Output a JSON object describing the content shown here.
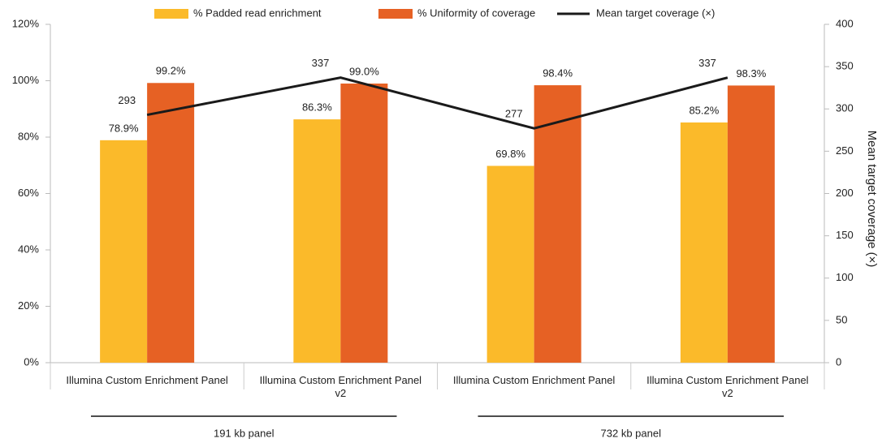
{
  "chart_data": {
    "type": "bar",
    "categories": [
      "Illumina Custom Enrichment Panel",
      "Illumina Custom Enrichment Panel v2",
      "Illumina Custom Enrichment Panel",
      "Illumina Custom Enrichment Panel v2"
    ],
    "groups": [
      "191 kb panel",
      "732 kb panel"
    ],
    "series": [
      {
        "name": "% Padded read enrichment",
        "color": "#FBBA2A",
        "values": [
          78.9,
          86.3,
          69.8,
          85.2
        ],
        "value_labels": [
          "78.9%",
          "86.3%",
          "69.8%",
          "85.2%"
        ]
      },
      {
        "name": "% Uniformity of coverage",
        "color": "#E66124",
        "values": [
          99.2,
          99.0,
          98.4,
          98.3
        ],
        "value_labels": [
          "99.2%",
          "99.0%",
          "98.4%",
          "98.3%"
        ]
      },
      {
        "name": "Mean target coverage (×)",
        "color": "#1a1a1a",
        "type": "line",
        "axis": "y2",
        "values": [
          293,
          337,
          277,
          337
        ]
      }
    ],
    "ylim": [
      0,
      120
    ],
    "yticks": [
      {
        "value": 0,
        "label": "0%"
      },
      {
        "value": 20,
        "label": "20%"
      },
      {
        "value": 40,
        "label": "40%"
      },
      {
        "value": 60,
        "label": "60%"
      },
      {
        "value": 80,
        "label": "80%"
      },
      {
        "value": 100,
        "label": "100%"
      },
      {
        "value": 120,
        "label": "120%"
      }
    ],
    "y2lim": [
      0,
      400
    ],
    "y2ticks": [
      0,
      50,
      100,
      150,
      200,
      250,
      300,
      350,
      400
    ],
    "y2label": "Mean target coverage (×)",
    "grid": false
  }
}
